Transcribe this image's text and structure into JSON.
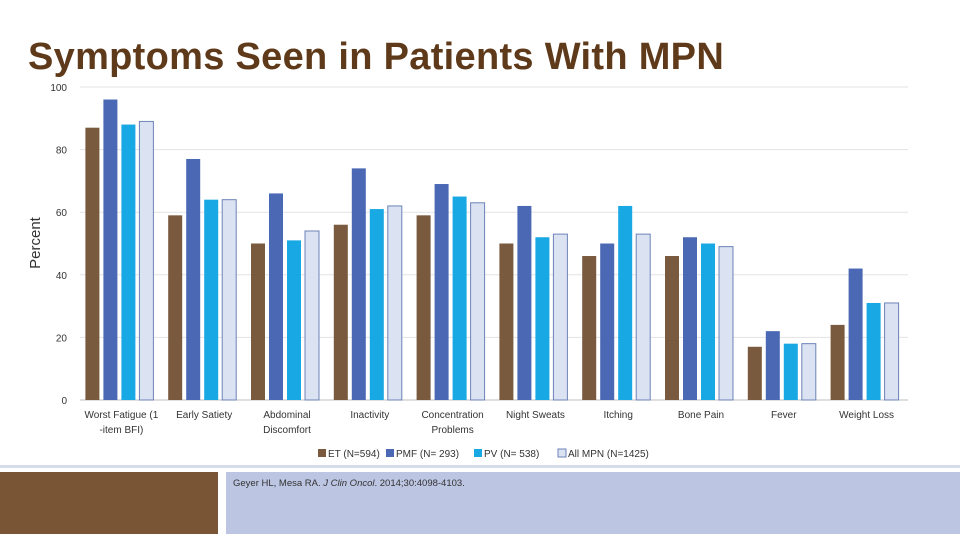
{
  "slide": {
    "title": "Symptoms Seen in Patients With MPN"
  },
  "citation": {
    "authors": "Geyer HL, Mesa RA. ",
    "journal": "J Clin Oncol",
    "details": ". 2014;30:4098-4103."
  },
  "chart_data": {
    "type": "bar",
    "title": "",
    "xlabel": "",
    "ylabel": "Percent",
    "ylim": [
      0,
      100
    ],
    "yticks": [
      0,
      20,
      40,
      60,
      80,
      100
    ],
    "grid": true,
    "legend_position": "bottom",
    "categories": [
      [
        "Worst Fatigue (1",
        "-item BFI)"
      ],
      [
        "Early Satiety"
      ],
      [
        "Abdominal",
        "Discomfort"
      ],
      [
        "Inactivity"
      ],
      [
        "Concentration",
        "Problems"
      ],
      [
        "Night Sweats"
      ],
      [
        "Itching"
      ],
      [
        "Bone Pain"
      ],
      [
        "Fever"
      ],
      [
        "Weight Loss"
      ]
    ],
    "series": [
      {
        "name": "ET (N=594)",
        "color": "#7a5a3e",
        "values": [
          87,
          59,
          50,
          56,
          59,
          50,
          46,
          46,
          17,
          24
        ]
      },
      {
        "name": "PMF (N= 293)",
        "color": "#4a68b3",
        "values": [
          96,
          77,
          66,
          74,
          69,
          62,
          50,
          52,
          22,
          42
        ]
      },
      {
        "name": "PV (N= 538)",
        "color": "#18a8e4",
        "values": [
          88,
          64,
          51,
          61,
          65,
          52,
          62,
          50,
          18,
          31
        ]
      },
      {
        "name": "All MPN (N=1425)",
        "color": "#dbe3f2",
        "values": [
          89,
          64,
          54,
          62,
          63,
          53,
          53,
          49,
          18,
          31
        ]
      }
    ]
  }
}
